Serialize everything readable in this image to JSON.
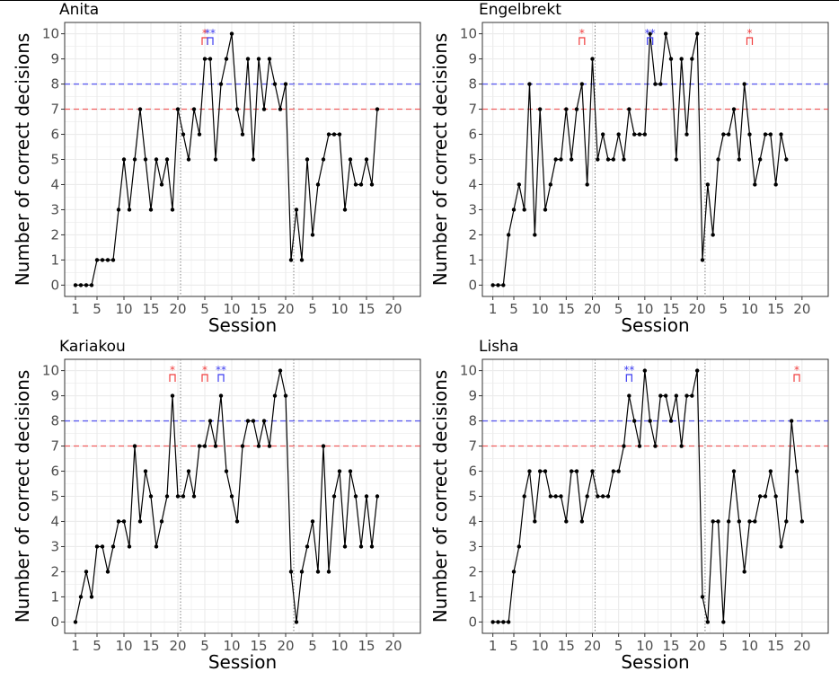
{
  "figure": {
    "y_axis_title": "Number of correct decisions",
    "x_axis_title": "Session",
    "x_tick_labels": [
      "1",
      "5",
      "10",
      "15",
      "20",
      "5",
      "10",
      "15",
      "20",
      "5",
      "10",
      "15",
      "20"
    ],
    "y_tick_labels": [
      "0",
      "1",
      "2",
      "3",
      "4",
      "5",
      "6",
      "7",
      "8",
      "9",
      "10"
    ],
    "significance_marks": {
      "single": "*",
      "double": "**"
    },
    "colors": {
      "red_threshold": "#f03c3c",
      "blue_threshold": "#3c3cf0",
      "line": "#000000",
      "grid": "#ebebeb",
      "phase_divider": "#808080"
    }
  },
  "chart_data": [
    {
      "type": "line",
      "title": "Anita",
      "xlabel": "Session",
      "ylabel": "Number of correct decisions",
      "ylim": [
        0,
        10
      ],
      "x_index_range": [
        1,
        63
      ],
      "phase_dividers_after_index": [
        20.5,
        41.5
      ],
      "reference_lines": [
        {
          "y": 8,
          "color": "blue",
          "style": "dashed"
        },
        {
          "y": 7,
          "color": "red",
          "style": "dashed"
        }
      ],
      "values": [
        0,
        0,
        0,
        0,
        1,
        1,
        1,
        1,
        3,
        5,
        3,
        5,
        7,
        5,
        3,
        5,
        4,
        5,
        3,
        7,
        6,
        5,
        7,
        6,
        9,
        9,
        5,
        8,
        9,
        10,
        7,
        6,
        9,
        5,
        9,
        7,
        9,
        8,
        7,
        8,
        1,
        3,
        1,
        5,
        2,
        4,
        5,
        6,
        6,
        6,
        3,
        5,
        4,
        4,
        5,
        4,
        7
      ],
      "significance": [
        {
          "x_index": 25,
          "mark": "*",
          "color": "red"
        },
        {
          "x_index": 26,
          "mark": "**",
          "color": "blue"
        }
      ]
    },
    {
      "type": "line",
      "title": "Engelbrekt",
      "xlabel": "Session",
      "ylabel": "Number of correct decisions",
      "ylim": [
        0,
        10
      ],
      "x_index_range": [
        1,
        63
      ],
      "phase_dividers_after_index": [
        20.5,
        41.5
      ],
      "reference_lines": [
        {
          "y": 8,
          "color": "blue",
          "style": "dashed"
        },
        {
          "y": 7,
          "color": "red",
          "style": "dashed"
        }
      ],
      "values": [
        0,
        0,
        0,
        2,
        3,
        4,
        3,
        8,
        2,
        7,
        3,
        4,
        5,
        5,
        7,
        5,
        7,
        8,
        4,
        9,
        5,
        6,
        5,
        5,
        6,
        5,
        7,
        6,
        6,
        6,
        10,
        8,
        8,
        10,
        9,
        5,
        9,
        6,
        9,
        10,
        1,
        4,
        2,
        5,
        6,
        6,
        7,
        5,
        8,
        6,
        4,
        5,
        6,
        6,
        4,
        6,
        5
      ],
      "significance": [
        {
          "x_index": 18,
          "mark": "*",
          "color": "red"
        },
        {
          "x_index": 31,
          "mark": "**",
          "color": "blue"
        },
        {
          "x_index": 50,
          "mark": "*",
          "color": "red"
        }
      ]
    },
    {
      "type": "line",
      "title": "Kariakou",
      "xlabel": "Session",
      "ylabel": "Number of correct decisions",
      "ylim": [
        0,
        10
      ],
      "x_index_range": [
        1,
        63
      ],
      "phase_dividers_after_index": [
        20.5,
        41.5
      ],
      "reference_lines": [
        {
          "y": 8,
          "color": "blue",
          "style": "dashed"
        },
        {
          "y": 7,
          "color": "red",
          "style": "dashed"
        }
      ],
      "values": [
        0,
        1,
        2,
        1,
        3,
        3,
        2,
        3,
        4,
        4,
        3,
        7,
        4,
        6,
        5,
        3,
        4,
        5,
        9,
        5,
        5,
        6,
        5,
        7,
        7,
        8,
        7,
        9,
        6,
        5,
        4,
        7,
        8,
        8,
        7,
        8,
        7,
        9,
        10,
        9,
        2,
        0,
        2,
        3,
        4,
        2,
        7,
        2,
        5,
        6,
        3,
        6,
        5,
        3,
        5,
        3,
        5
      ],
      "significance": [
        {
          "x_index": 19,
          "mark": "*",
          "color": "red"
        },
        {
          "x_index": 25,
          "mark": "*",
          "color": "red"
        },
        {
          "x_index": 28,
          "mark": "**",
          "color": "blue"
        }
      ]
    },
    {
      "type": "line",
      "title": "Lisha",
      "xlabel": "Session",
      "ylabel": "Number of correct decisions",
      "ylim": [
        0,
        10
      ],
      "x_index_range": [
        1,
        63
      ],
      "phase_dividers_after_index": [
        20.5,
        41.5
      ],
      "reference_lines": [
        {
          "y": 8,
          "color": "blue",
          "style": "dashed"
        },
        {
          "y": 7,
          "color": "red",
          "style": "dashed"
        }
      ],
      "values": [
        0,
        0,
        0,
        0,
        2,
        3,
        5,
        6,
        4,
        6,
        6,
        5,
        5,
        5,
        4,
        6,
        6,
        4,
        5,
        6,
        5,
        5,
        5,
        6,
        6,
        7,
        9,
        8,
        7,
        10,
        8,
        7,
        9,
        9,
        8,
        9,
        7,
        9,
        9,
        10,
        1,
        0,
        4,
        4,
        0,
        4,
        6,
        4,
        2,
        4,
        4,
        5,
        5,
        6,
        5,
        3,
        4,
        8,
        6,
        4
      ],
      "significance": [
        {
          "x_index": 27,
          "mark": "**",
          "color": "blue"
        },
        {
          "x_index": 59,
          "mark": "*",
          "color": "red"
        }
      ]
    }
  ]
}
